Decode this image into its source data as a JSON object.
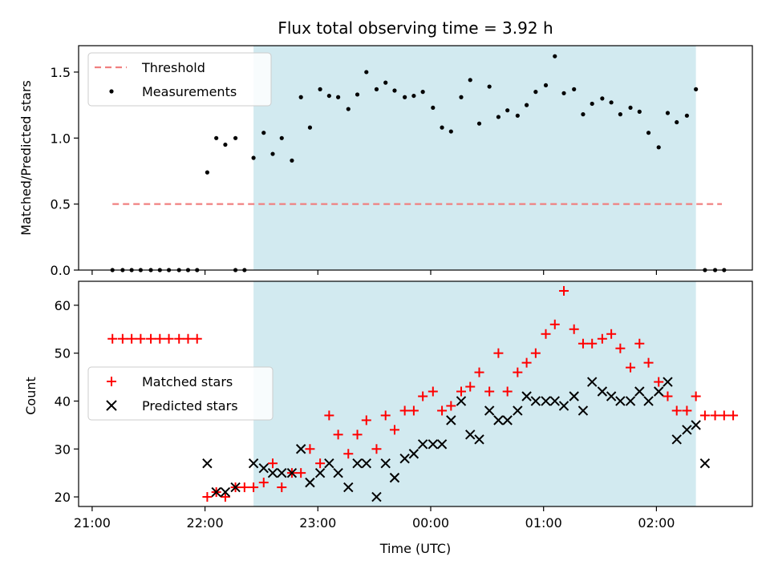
{
  "chart_data": [
    {
      "type": "scatter",
      "title": "Flux total observing time = 3.92 h",
      "xlabel": "",
      "ylabel": "Matched/Predicted stars",
      "ylim": [
        0,
        1.7
      ],
      "yticks": [
        0.0,
        0.5,
        1.0,
        1.5
      ],
      "ytick_labels": [
        "0.0",
        "0.5",
        "1.0",
        "1.5"
      ],
      "xlim_hours": [
        20.88,
        26.85
      ],
      "shaded_interval_hours": [
        22.43,
        26.35
      ],
      "shade_color": "#d2eaf0",
      "threshold": {
        "name": "Threshold",
        "y": 0.5,
        "x_range_hours": [
          21.18,
          26.58
        ],
        "color": "#f08080",
        "style": "dashed"
      },
      "legend": {
        "placement": "upper-left",
        "entries": [
          "Threshold",
          "Measurements"
        ]
      },
      "series": [
        {
          "name": "Measurements",
          "color": "#000000",
          "marker": "dot",
          "points": [
            [
              21.18,
              0
            ],
            [
              21.27,
              0
            ],
            [
              21.35,
              0
            ],
            [
              21.43,
              0
            ],
            [
              21.52,
              0
            ],
            [
              21.6,
              0
            ],
            [
              21.68,
              0
            ],
            [
              21.77,
              0
            ],
            [
              21.85,
              0
            ],
            [
              21.93,
              0
            ],
            [
              22.02,
              0.74
            ],
            [
              22.1,
              1.0
            ],
            [
              22.18,
              0.95
            ],
            [
              22.27,
              1.0
            ],
            [
              22.27,
              0
            ],
            [
              22.35,
              0
            ],
            [
              22.43,
              0.85
            ],
            [
              22.52,
              1.04
            ],
            [
              22.6,
              0.88
            ],
            [
              22.68,
              1.0
            ],
            [
              22.77,
              0.83
            ],
            [
              22.85,
              1.31
            ],
            [
              22.93,
              1.08
            ],
            [
              23.02,
              1.37
            ],
            [
              23.1,
              1.32
            ],
            [
              23.18,
              1.31
            ],
            [
              23.27,
              1.22
            ],
            [
              23.35,
              1.33
            ],
            [
              23.43,
              1.5
            ],
            [
              23.52,
              1.37
            ],
            [
              23.6,
              1.42
            ],
            [
              23.68,
              1.36
            ],
            [
              23.77,
              1.31
            ],
            [
              23.85,
              1.32
            ],
            [
              23.93,
              1.35
            ],
            [
              24.02,
              1.23
            ],
            [
              24.1,
              1.08
            ],
            [
              24.18,
              1.05
            ],
            [
              24.27,
              1.31
            ],
            [
              24.35,
              1.44
            ],
            [
              24.43,
              1.11
            ],
            [
              24.52,
              1.39
            ],
            [
              24.6,
              1.16
            ],
            [
              24.68,
              1.21
            ],
            [
              24.77,
              1.17
            ],
            [
              24.85,
              1.25
            ],
            [
              24.93,
              1.35
            ],
            [
              25.02,
              1.4
            ],
            [
              25.1,
              1.62
            ],
            [
              25.18,
              1.34
            ],
            [
              25.27,
              1.37
            ],
            [
              25.35,
              1.18
            ],
            [
              25.43,
              1.26
            ],
            [
              25.52,
              1.3
            ],
            [
              25.6,
              1.27
            ],
            [
              25.68,
              1.18
            ],
            [
              25.77,
              1.23
            ],
            [
              25.85,
              1.2
            ],
            [
              25.93,
              1.04
            ],
            [
              26.02,
              0.93
            ],
            [
              26.1,
              1.19
            ],
            [
              26.18,
              1.12
            ],
            [
              26.27,
              1.17
            ],
            [
              26.35,
              1.37
            ],
            [
              26.43,
              0
            ],
            [
              26.52,
              0
            ],
            [
              26.6,
              0
            ]
          ]
        }
      ]
    },
    {
      "type": "scatter",
      "title": "",
      "xlabel": "Time (UTC)",
      "ylabel": "Count",
      "ylim": [
        18,
        65
      ],
      "yticks": [
        20,
        30,
        40,
        50,
        60
      ],
      "ytick_labels": [
        "20",
        "30",
        "40",
        "50",
        "60"
      ],
      "xlim_hours": [
        20.88,
        26.85
      ],
      "xticks_hours": [
        21,
        22,
        23,
        24,
        25,
        26
      ],
      "xtick_labels": [
        "21:00",
        "22:00",
        "23:00",
        "00:00",
        "01:00",
        "02:00"
      ],
      "shaded_interval_hours": [
        22.43,
        26.35
      ],
      "shade_color": "#d2eaf0",
      "legend": {
        "placement": "center-left",
        "entries": [
          "Matched stars",
          "Predicted stars"
        ]
      },
      "series": [
        {
          "name": "Matched stars",
          "color": "#ff0000",
          "marker": "plus",
          "points": [
            [
              21.18,
              53
            ],
            [
              21.27,
              53
            ],
            [
              21.35,
              53
            ],
            [
              21.43,
              53
            ],
            [
              21.52,
              53
            ],
            [
              21.6,
              53
            ],
            [
              21.68,
              53
            ],
            [
              21.77,
              53
            ],
            [
              21.85,
              53
            ],
            [
              21.93,
              53
            ],
            [
              22.02,
              20
            ],
            [
              22.1,
              21
            ],
            [
              22.18,
              20
            ],
            [
              22.27,
              22
            ],
            [
              22.35,
              22
            ],
            [
              22.43,
              22
            ],
            [
              22.52,
              23
            ],
            [
              22.6,
              27
            ],
            [
              22.68,
              22
            ],
            [
              22.77,
              25
            ],
            [
              22.85,
              25
            ],
            [
              22.93,
              30
            ],
            [
              23.02,
              27
            ],
            [
              23.1,
              37
            ],
            [
              23.18,
              33
            ],
            [
              23.27,
              29
            ],
            [
              23.35,
              33
            ],
            [
              23.43,
              36
            ],
            [
              23.52,
              30
            ],
            [
              23.6,
              37
            ],
            [
              23.68,
              34
            ],
            [
              23.77,
              38
            ],
            [
              23.85,
              38
            ],
            [
              23.93,
              41
            ],
            [
              24.02,
              42
            ],
            [
              24.1,
              38
            ],
            [
              24.18,
              39
            ],
            [
              24.27,
              42
            ],
            [
              24.35,
              43
            ],
            [
              24.43,
              46
            ],
            [
              24.52,
              42
            ],
            [
              24.6,
              50
            ],
            [
              24.68,
              42
            ],
            [
              24.77,
              46
            ],
            [
              24.85,
              48
            ],
            [
              24.93,
              50
            ],
            [
              25.02,
              54
            ],
            [
              25.1,
              56
            ],
            [
              25.18,
              63
            ],
            [
              25.27,
              55
            ],
            [
              25.35,
              52
            ],
            [
              25.43,
              52
            ],
            [
              25.52,
              53
            ],
            [
              25.6,
              54
            ],
            [
              25.68,
              51
            ],
            [
              25.77,
              47
            ],
            [
              25.85,
              52
            ],
            [
              25.93,
              48
            ],
            [
              26.02,
              44
            ],
            [
              26.1,
              41
            ],
            [
              26.18,
              38
            ],
            [
              26.27,
              38
            ],
            [
              26.35,
              41
            ],
            [
              26.43,
              37
            ],
            [
              26.52,
              37
            ],
            [
              26.6,
              37
            ],
            [
              26.68,
              37
            ]
          ]
        },
        {
          "name": "Predicted stars",
          "color": "#000000",
          "marker": "x",
          "points": [
            [
              22.02,
              27
            ],
            [
              22.1,
              21
            ],
            [
              22.18,
              21
            ],
            [
              22.27,
              22
            ],
            [
              22.43,
              27
            ],
            [
              22.52,
              26
            ],
            [
              22.6,
              25
            ],
            [
              22.68,
              25
            ],
            [
              22.77,
              25
            ],
            [
              22.85,
              30
            ],
            [
              22.93,
              23
            ],
            [
              23.02,
              25
            ],
            [
              23.1,
              27
            ],
            [
              23.18,
              25
            ],
            [
              23.27,
              22
            ],
            [
              23.35,
              27
            ],
            [
              23.43,
              27
            ],
            [
              23.52,
              20
            ],
            [
              23.6,
              27
            ],
            [
              23.68,
              24
            ],
            [
              23.77,
              28
            ],
            [
              23.85,
              29
            ],
            [
              23.93,
              31
            ],
            [
              24.02,
              31
            ],
            [
              24.1,
              31
            ],
            [
              24.18,
              36
            ],
            [
              24.27,
              40
            ],
            [
              24.35,
              33
            ],
            [
              24.43,
              32
            ],
            [
              24.52,
              38
            ],
            [
              24.6,
              36
            ],
            [
              24.68,
              36
            ],
            [
              24.77,
              38
            ],
            [
              24.85,
              41
            ],
            [
              24.93,
              40
            ],
            [
              25.02,
              40
            ],
            [
              25.1,
              40
            ],
            [
              25.18,
              39
            ],
            [
              25.27,
              41
            ],
            [
              25.35,
              38
            ],
            [
              25.43,
              44
            ],
            [
              25.52,
              42
            ],
            [
              25.6,
              41
            ],
            [
              25.68,
              40
            ],
            [
              25.77,
              40
            ],
            [
              25.85,
              42
            ],
            [
              25.93,
              40
            ],
            [
              26.02,
              42
            ],
            [
              26.1,
              44
            ],
            [
              26.18,
              32
            ],
            [
              26.27,
              34
            ],
            [
              26.35,
              35
            ],
            [
              26.43,
              27
            ]
          ]
        }
      ]
    }
  ]
}
